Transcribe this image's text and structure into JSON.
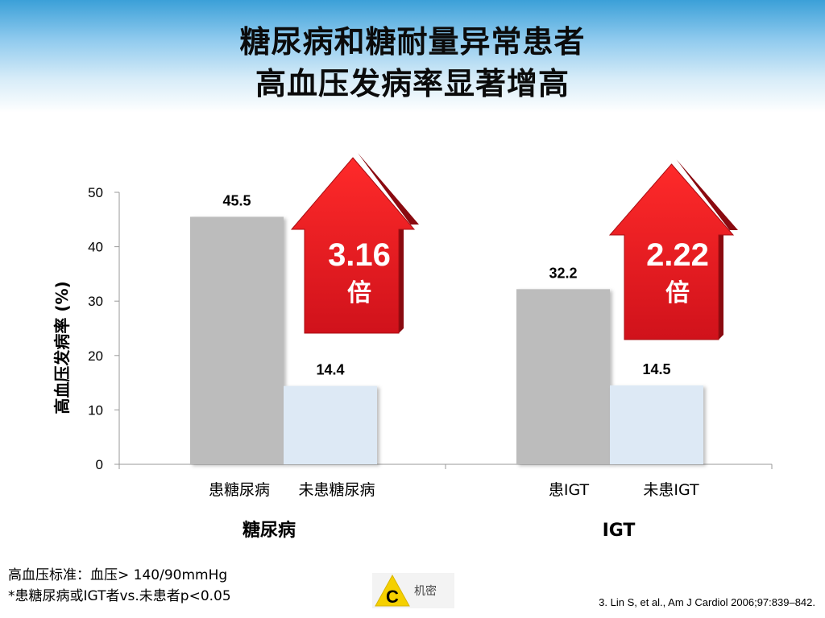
{
  "title": {
    "line1": "糖尿病和糖耐量异常患者",
    "line2": "高血压发病率显著增高"
  },
  "chart_data": {
    "type": "bar",
    "ylabel": "高血压发病率 (%)",
    "ylim": [
      0,
      50
    ],
    "yticks": [
      "0",
      "10",
      "20",
      "30",
      "40",
      "50"
    ],
    "groups": [
      {
        "name": "糖尿病",
        "bars": [
          {
            "label": "患糖尿病",
            "value": 45.5,
            "value_label": "45.5",
            "color": "#bcbcbc"
          },
          {
            "label": "未患糖尿病",
            "value": 14.4,
            "value_label": "14.4",
            "color": "#dde9f5"
          }
        ],
        "arrow": {
          "ratio": "3.16",
          "unit": "倍"
        }
      },
      {
        "name": "IGT",
        "bars": [
          {
            "label": "患IGT",
            "value": 32.2,
            "value_label": "32.2",
            "color": "#bcbcbc"
          },
          {
            "label": "未患IGT",
            "value": 14.5,
            "value_label": "14.5",
            "color": "#dde9f5"
          }
        ],
        "arrow": {
          "ratio": "2.22",
          "unit": "倍"
        }
      }
    ]
  },
  "footnote": {
    "line1": "高血压标准：血压> 140/90mmHg",
    "line2": "*患糖尿病或IGT者vs.未患者p<0.05"
  },
  "citation": "3. Lin S, et al., Am J Cardiol 2006;97:839–842.",
  "badge": {
    "icon": "caution-triangle-icon",
    "letter": "C",
    "text": "机密"
  },
  "colors": {
    "arrow": "#d0121b",
    "arrow_dark": "#8a0a10",
    "header": "#3ba0d8"
  }
}
